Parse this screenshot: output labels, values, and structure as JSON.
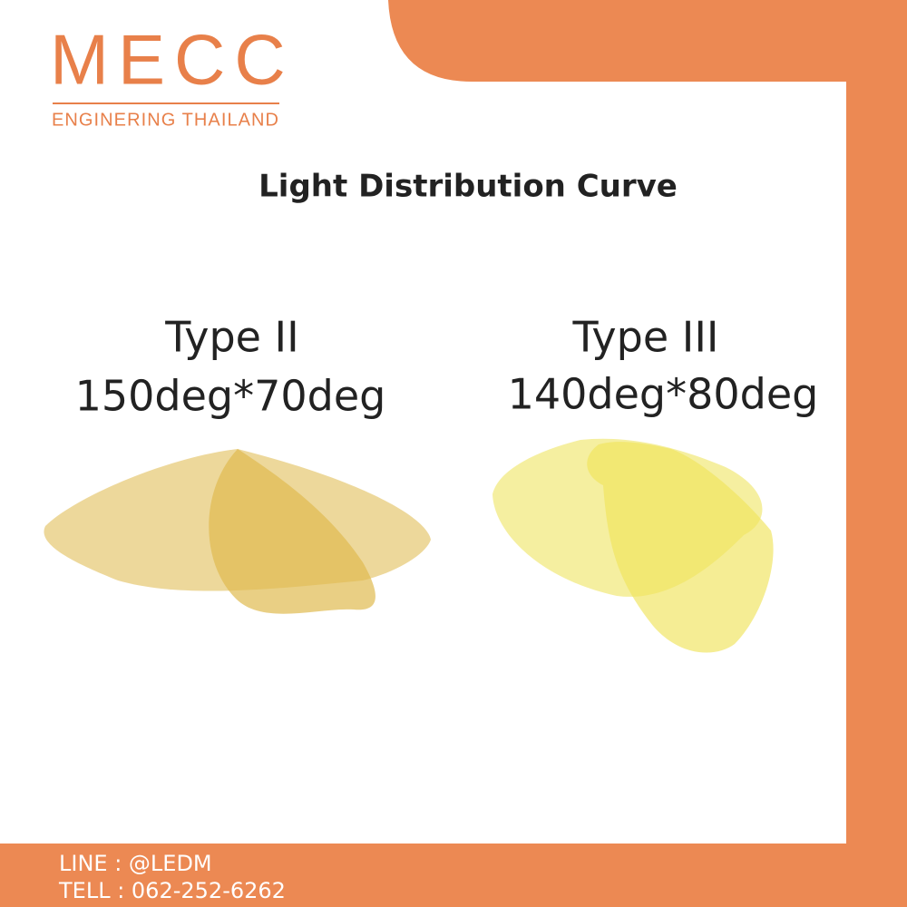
{
  "logo": {
    "name": "MECC",
    "tagline": "ENGINERING THAILAND"
  },
  "title": "Light Distribution Curve",
  "types": [
    {
      "name": "Type II",
      "angles": "150deg*70deg"
    },
    {
      "name": "Type III",
      "angles": "140deg*80deg"
    }
  ],
  "contact": {
    "line": "LINE : @LEDM",
    "tell": "TELL : 062-252-6262"
  }
}
